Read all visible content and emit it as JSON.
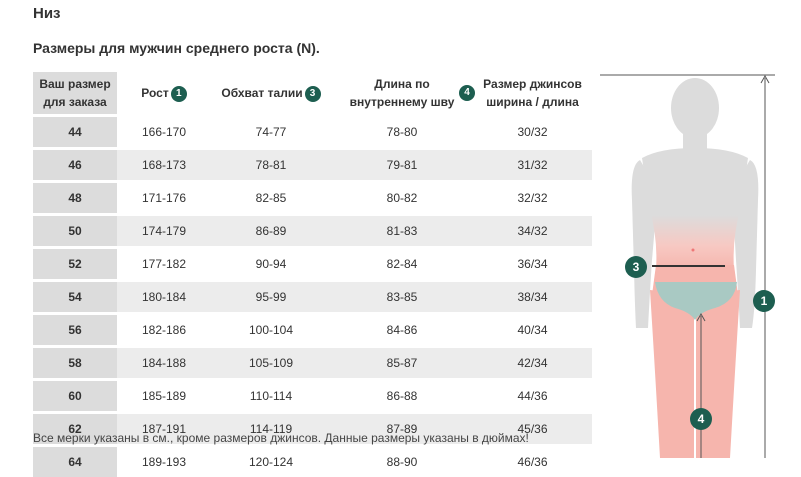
{
  "title": "Низ",
  "subtitle": "Размеры для мужчин среднего роста (N).",
  "table": {
    "headers": {
      "size": "Ваш размер для заказа",
      "height": "Рост",
      "waist": "Обхват талии",
      "inseam": "Длина по внутреннему шву",
      "jeans": "Размер джинсов ширина / длина"
    },
    "badges": {
      "height": "1",
      "waist": "3",
      "inseam": "4"
    },
    "rows": [
      {
        "size": "44",
        "height": "166-170",
        "waist": "74-77",
        "inseam": "78-80",
        "jeans": "30/32"
      },
      {
        "size": "46",
        "height": "168-173",
        "waist": "78-81",
        "inseam": "79-81",
        "jeans": "31/32"
      },
      {
        "size": "48",
        "height": "171-176",
        "waist": "82-85",
        "inseam": "80-82",
        "jeans": "32/32"
      },
      {
        "size": "50",
        "height": "174-179",
        "waist": "86-89",
        "inseam": "81-83",
        "jeans": "34/32"
      },
      {
        "size": "52",
        "height": "177-182",
        "waist": "90-94",
        "inseam": "82-84",
        "jeans": "36/34"
      },
      {
        "size": "54",
        "height": "180-184",
        "waist": "95-99",
        "inseam": "83-85",
        "jeans": "38/34"
      },
      {
        "size": "56",
        "height": "182-186",
        "waist": "100-104",
        "inseam": "84-86",
        "jeans": "40/34"
      },
      {
        "size": "58",
        "height": "184-188",
        "waist": "105-109",
        "inseam": "85-87",
        "jeans": "42/34"
      },
      {
        "size": "60",
        "height": "185-189",
        "waist": "110-114",
        "inseam": "86-88",
        "jeans": "44/36"
      },
      {
        "size": "62",
        "height": "187-191",
        "waist": "114-119",
        "inseam": "87-89",
        "jeans": "45/36"
      },
      {
        "size": "64",
        "height": "189-193",
        "waist": "120-124",
        "inseam": "88-90",
        "jeans": "46/36"
      }
    ]
  },
  "footnote": "Все мерки указаны в см., кроме размеров джинсов. Данные размеры указаны в дюймах!",
  "figure": {
    "markers": {
      "height": "1",
      "waist": "3",
      "inseam": "4"
    },
    "colors": {
      "accent": "#1d5e50",
      "body": "#d9d9d9",
      "skin_red": "#f6b8b0",
      "underwear": "#a9c9c3"
    }
  }
}
